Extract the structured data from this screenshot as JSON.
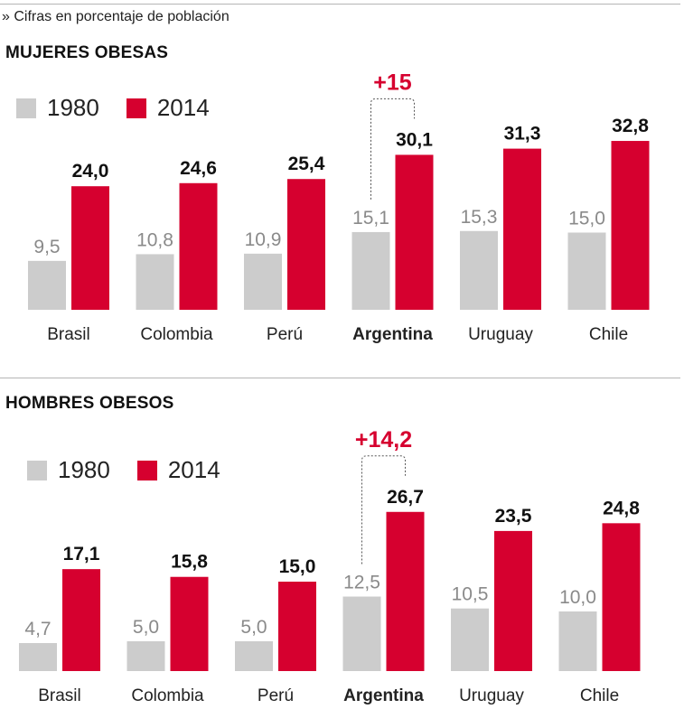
{
  "subtitle": "» Cifras en porcentaje de población",
  "colors": {
    "c1980": "#cccccc",
    "c2014": "#d6002f",
    "accent": "#d6002f",
    "label1980": "#8a8a8a",
    "label2014": "#111111"
  },
  "legend": {
    "a": "1980",
    "b": "2014"
  },
  "chart_data": [
    {
      "type": "bar",
      "title": "MUJERES OBESAS",
      "categories": [
        "Brasil",
        "Colombia",
        "Perú",
        "Argentina",
        "Uruguay",
        "Chile"
      ],
      "highlight": "Argentina",
      "series": [
        {
          "name": "1980",
          "values": [
            9.5,
            10.8,
            10.9,
            15.1,
            15.3,
            15.0
          ],
          "labels": [
            "9,5",
            "10,8",
            "10,9",
            "15,1",
            "15,3",
            "15,0"
          ]
        },
        {
          "name": "2014",
          "values": [
            24.0,
            24.6,
            25.4,
            30.1,
            31.3,
            32.8
          ],
          "labels": [
            "24,0",
            "24,6",
            "25,4",
            "30,1",
            "31,3",
            "32,8"
          ]
        }
      ],
      "annotation": {
        "category": "Argentina",
        "text": "+15"
      }
    },
    {
      "type": "bar",
      "title": "HOMBRES OBESOS",
      "categories": [
        "Brasil",
        "Colombia",
        "Perú",
        "Argentina",
        "Uruguay",
        "Chile"
      ],
      "highlight": "Argentina",
      "series": [
        {
          "name": "1980",
          "values": [
            4.7,
            5.0,
            5.0,
            12.5,
            10.5,
            10.0
          ],
          "labels": [
            "4,7",
            "5,0",
            "5,0",
            "12,5",
            "10,5",
            "10,0"
          ]
        },
        {
          "name": "2014",
          "values": [
            17.1,
            15.8,
            15.0,
            26.7,
            23.5,
            24.8
          ],
          "labels": [
            "17,1",
            "15,8",
            "15,0",
            "26,7",
            "23,5",
            "24,8"
          ]
        }
      ],
      "annotation": {
        "category": "Argentina",
        "text": "+14,2"
      }
    }
  ]
}
